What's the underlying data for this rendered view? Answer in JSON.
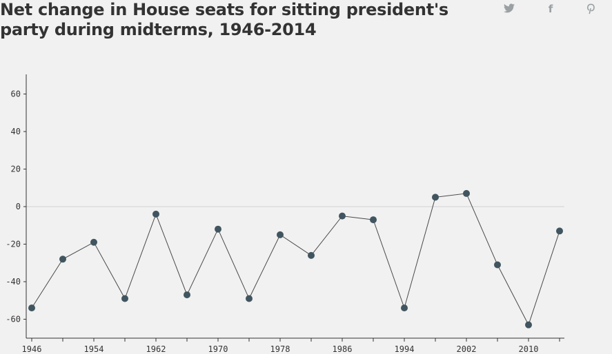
{
  "header": {
    "title": "Net change in House seats for sitting president's party during midterms, 1946-2014"
  },
  "share": {
    "twitter_icon": "twitter-icon",
    "facebook_icon": "facebook-icon",
    "facebook_label": "f",
    "pinterest_icon": "pinterest-icon"
  },
  "colors": {
    "background": "#f0f1f0",
    "line": "#4a4a4a",
    "point": "#415560",
    "zero_line": "#d4d4d4",
    "axis": "#333333",
    "icon": "#9aa0a3"
  },
  "chart_data": {
    "type": "line",
    "title": "Net change in House seats for sitting president's party during midterms, 1946-2014",
    "xlabel": "",
    "ylabel": "",
    "x": [
      1946,
      1950,
      1954,
      1958,
      1962,
      1966,
      1970,
      1974,
      1978,
      1982,
      1986,
      1990,
      1994,
      1998,
      2002,
      2006,
      2010,
      2014
    ],
    "series": [
      {
        "values": [
          -54,
          -28,
          -19,
          -49,
          -4,
          -47,
          -12,
          -49,
          -15,
          -26,
          -5,
          -7,
          -54,
          5,
          7,
          -31,
          -63,
          -13
        ]
      }
    ],
    "xlim": [
      1946,
      2014
    ],
    "ylim": [
      -70,
      70
    ],
    "y_ticks": [
      -60,
      -40,
      -20,
      0,
      20,
      40,
      60
    ],
    "y_tick_labels": [
      "-60",
      "-40",
      "-20",
      "0",
      "20",
      "40",
      "60"
    ],
    "x_tick_labels": [
      "1946",
      "1954",
      "1962",
      "1970",
      "1978",
      "1986",
      "1994",
      "2002",
      "2010"
    ],
    "grid": false,
    "zero_line": true,
    "legend": "none"
  }
}
